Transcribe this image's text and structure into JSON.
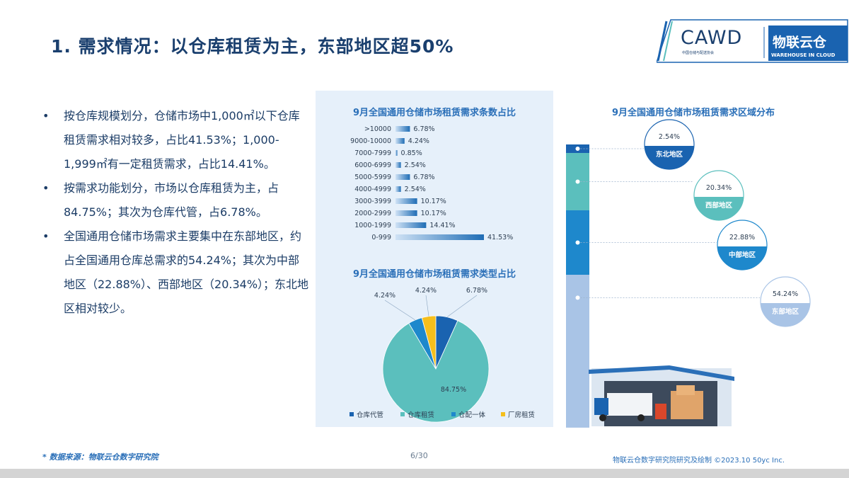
{
  "title": "1. 需求情况：以仓库租赁为主，东部地区超50%",
  "logo": {
    "cawd": "CAWD",
    "cawd_sub": "中国仓储与配送协会",
    "brand": "物联云仓",
    "brand_en": "WAREHOUSE IN CLOUD"
  },
  "bullets": [
    "按仓库规模划分，仓储市场中1,000㎡以下仓库租赁需求相对较多，占比41.53%；1,000-1,999㎡有一定租赁需求，占比14.41%。",
    "按需求功能划分，市场以仓库租赁为主，占84.75%；其次为仓库代管，占6.78%。",
    "全国通用仓储市场需求主要集中在东部地区，约占全国通用仓库总需求的54.24%；其次为中部地区（22.88%）、西部地区（20.34%）；东北地区相对较少。"
  ],
  "bullet_symbol": "•",
  "chart_data": [
    {
      "type": "bar",
      "orientation": "horizontal",
      "title": "9月全国通用仓储市场租赁需求条数占比",
      "categories": [
        ">10000",
        "9000-10000",
        "7000-7999",
        "6000-6999",
        "5000-5999",
        "4000-4999",
        "3000-3999",
        "2000-2999",
        "1000-1999",
        "0-999"
      ],
      "values": [
        6.78,
        4.24,
        0.85,
        2.54,
        6.78,
        2.54,
        10.17,
        10.17,
        14.41,
        41.53
      ],
      "value_labels": [
        "6.78%",
        "4.24%",
        "0.85%",
        "2.54%",
        "6.78%",
        "2.54%",
        "10.17%",
        "10.17%",
        "14.41%",
        "41.53%"
      ],
      "bar_color": "#1f6db5"
    },
    {
      "type": "pie",
      "title": "9月全国通用仓储市场租赁需求类型占比",
      "labels": [
        "仓库代管",
        "仓库租赁",
        "仓配一体",
        "厂房租赁"
      ],
      "values": [
        6.78,
        84.75,
        4.24,
        4.24
      ],
      "value_labels": [
        "6.78%",
        "84.75%",
        "4.24%",
        "4.24%"
      ],
      "colors": [
        "#1a63b0",
        "#5bbfbd",
        "#1e88cc",
        "#f5bf1c"
      ],
      "legend_position": "bottom"
    },
    {
      "type": "bar",
      "orientation": "stacked-vertical",
      "title": "9月全国通用仓储市场租赁需求区域分布",
      "labels": [
        "东北地区",
        "西部地区",
        "中部地区",
        "东部地区"
      ],
      "values": [
        2.54,
        20.34,
        22.88,
        54.24
      ],
      "value_labels": [
        "2.54%",
        "20.34%",
        "22.88%",
        "54.24%"
      ],
      "colors": [
        "#1a63b0",
        "#5bbfbd",
        "#1e88cc",
        "#a9c4e6"
      ]
    }
  ],
  "footer": {
    "source": "* 数据来源：物联云仓数字研究院",
    "page": "6/30",
    "credit": "物联云仓数字研究院研究及绘制    ©2023.10  50yc Inc."
  }
}
